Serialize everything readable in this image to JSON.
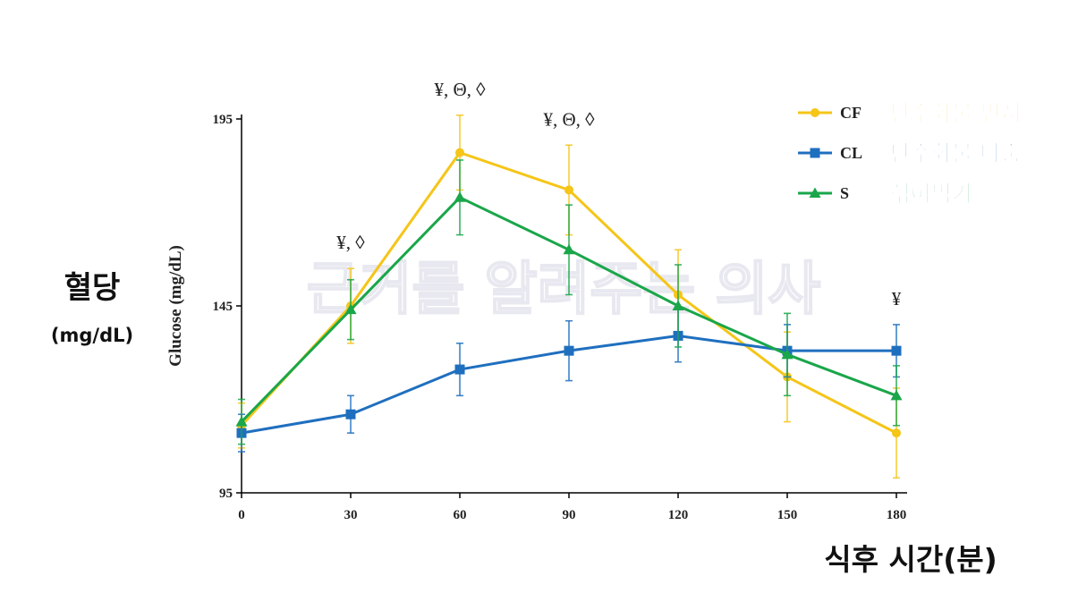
{
  "chart_data": {
    "type": "line",
    "x": [
      0,
      30,
      60,
      90,
      120,
      150,
      180
    ],
    "xlim": [
      0,
      180
    ],
    "ylim": [
      95,
      195
    ],
    "y_ticks": [
      95,
      145,
      195
    ],
    "ylabel": "Glucose (mg/dL)",
    "ylabel_korean": "혈당",
    "ylabel_korean_unit": "(mg/dL)",
    "xlabel": "식후 시간(분)",
    "legend_position": "top-right",
    "watermark": "근거를 알려주는 의사",
    "series": [
      {
        "name": "CF",
        "name_korean": "탄수화물 먼저",
        "color": "#f5c518",
        "marker": "circle",
        "values": [
          113,
          145,
          186,
          176,
          148,
          126,
          111
        ],
        "errors": [
          6,
          10,
          10,
          12,
          12,
          12,
          12
        ]
      },
      {
        "name": "CL",
        "name_korean": "탄수화물 나중",
        "color": "#1f6fbf",
        "marker": "square",
        "values": [
          111,
          116,
          128,
          133,
          137,
          133,
          133
        ],
        "errors": [
          5,
          5,
          7,
          8,
          7,
          7,
          7
        ]
      },
      {
        "name": "S",
        "name_korean": "섞어먹기",
        "color": "#1aa64a",
        "marker": "triangle",
        "values": [
          114,
          144,
          174,
          160,
          145,
          132,
          121
        ],
        "errors": [
          6,
          8,
          10,
          12,
          11,
          11,
          8
        ]
      }
    ],
    "annotations": [
      {
        "x": 30,
        "text": "¥, ◊"
      },
      {
        "x": 60,
        "text": "¥, Θ, ◊"
      },
      {
        "x": 90,
        "text": "¥, Θ, ◊"
      },
      {
        "x": 180,
        "text": "¥"
      }
    ]
  }
}
